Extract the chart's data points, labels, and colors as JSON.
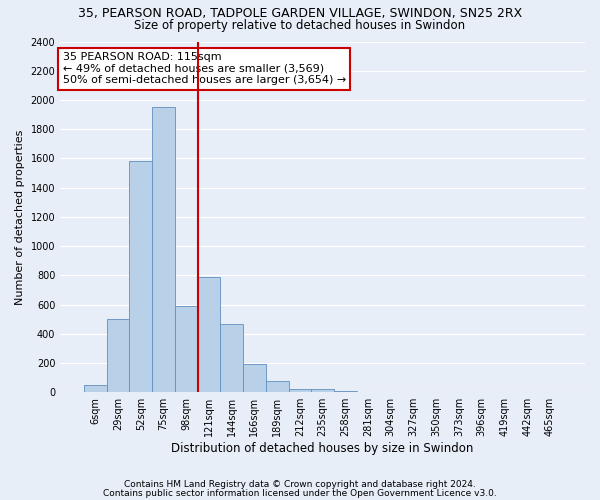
{
  "title": "35, PEARSON ROAD, TADPOLE GARDEN VILLAGE, SWINDON, SN25 2RX",
  "subtitle": "Size of property relative to detached houses in Swindon",
  "xlabel": "Distribution of detached houses by size in Swindon",
  "ylabel": "Number of detached properties",
  "footer_line1": "Contains HM Land Registry data © Crown copyright and database right 2024.",
  "footer_line2": "Contains public sector information licensed under the Open Government Licence v3.0.",
  "categories": [
    "6sqm",
    "29sqm",
    "52sqm",
    "75sqm",
    "98sqm",
    "121sqm",
    "144sqm",
    "166sqm",
    "189sqm",
    "212sqm",
    "235sqm",
    "258sqm",
    "281sqm",
    "304sqm",
    "327sqm",
    "350sqm",
    "373sqm",
    "396sqm",
    "419sqm",
    "442sqm",
    "465sqm"
  ],
  "values": [
    50,
    500,
    1580,
    1950,
    590,
    790,
    470,
    195,
    80,
    25,
    20,
    5,
    0,
    0,
    0,
    0,
    0,
    0,
    0,
    0,
    0
  ],
  "bar_color": "#b8d0e8",
  "bar_edge_color": "#6090c0",
  "vline_index": 4,
  "vline_color": "#cc0000",
  "ylim": [
    0,
    2400
  ],
  "yticks": [
    0,
    200,
    400,
    600,
    800,
    1000,
    1200,
    1400,
    1600,
    1800,
    2000,
    2200,
    2400
  ],
  "annotation_text": "35 PEARSON ROAD: 115sqm\n← 49% of detached houses are smaller (3,569)\n50% of semi-detached houses are larger (3,654) →",
  "annotation_box_facecolor": "#ffffff",
  "annotation_box_edgecolor": "#cc0000",
  "background_color": "#e8eef8",
  "grid_color": "#ffffff",
  "title_fontsize": 9,
  "subtitle_fontsize": 8.5,
  "tick_fontsize": 7,
  "ylabel_fontsize": 8,
  "xlabel_fontsize": 8.5,
  "footer_fontsize": 6.5,
  "annotation_fontsize": 8
}
